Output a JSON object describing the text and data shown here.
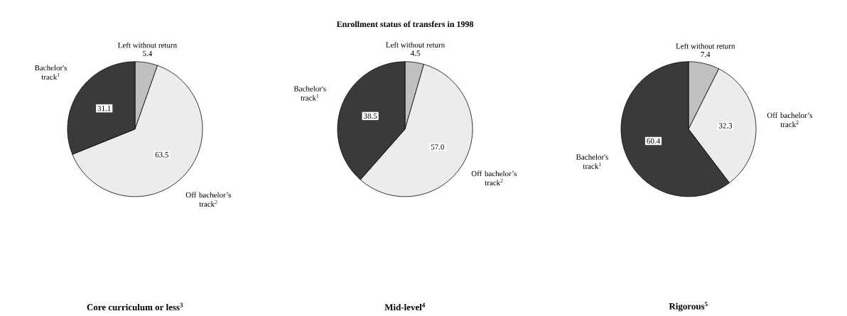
{
  "chart_data": [
    {
      "type": "pie",
      "title": "Core curriculum or less$^{3}$",
      "categories": [
        "Left  without return",
        "Off bachelor’s track$^{2}$",
        "Bachelor's track$^{1}$"
      ],
      "values": [
        5.4,
        63.5,
        31.1
      ],
      "colors": [
        "#c0c0c0",
        "#ececec",
        "#3a3a3a"
      ],
      "data_labels": true
    },
    {
      "type": "pie",
      "title": "Mid-level$^{4}$",
      "annotations": [
        "Enrollment status of transfers in 1998"
      ],
      "categories": [
        "Left  without return",
        "Off bachelor’s track$^{2}$",
        "Bachelor's track$^{1}$"
      ],
      "values": [
        4.5,
        57.0,
        38.5
      ],
      "value_labels": [
        "4.5",
        "57.0",
        "38.5"
      ],
      "colors": [
        "#c0c0c0",
        "#ececec",
        "#3a3a3a"
      ]
    },
    {
      "type": "pie",
      "title": "Rigorous$^{5}$",
      "categories": [
        "Left  without return",
        "Off bachelor’s track$^{2}$",
        "Bachelor's track$^{1}$"
      ],
      "values": [
        7.4,
        32.3,
        60.4
      ],
      "colors": [
        "#c0c0c0",
        "#ececec",
        "#3a3a3a"
      ],
      "data_labels": true
    }
  ]
}
